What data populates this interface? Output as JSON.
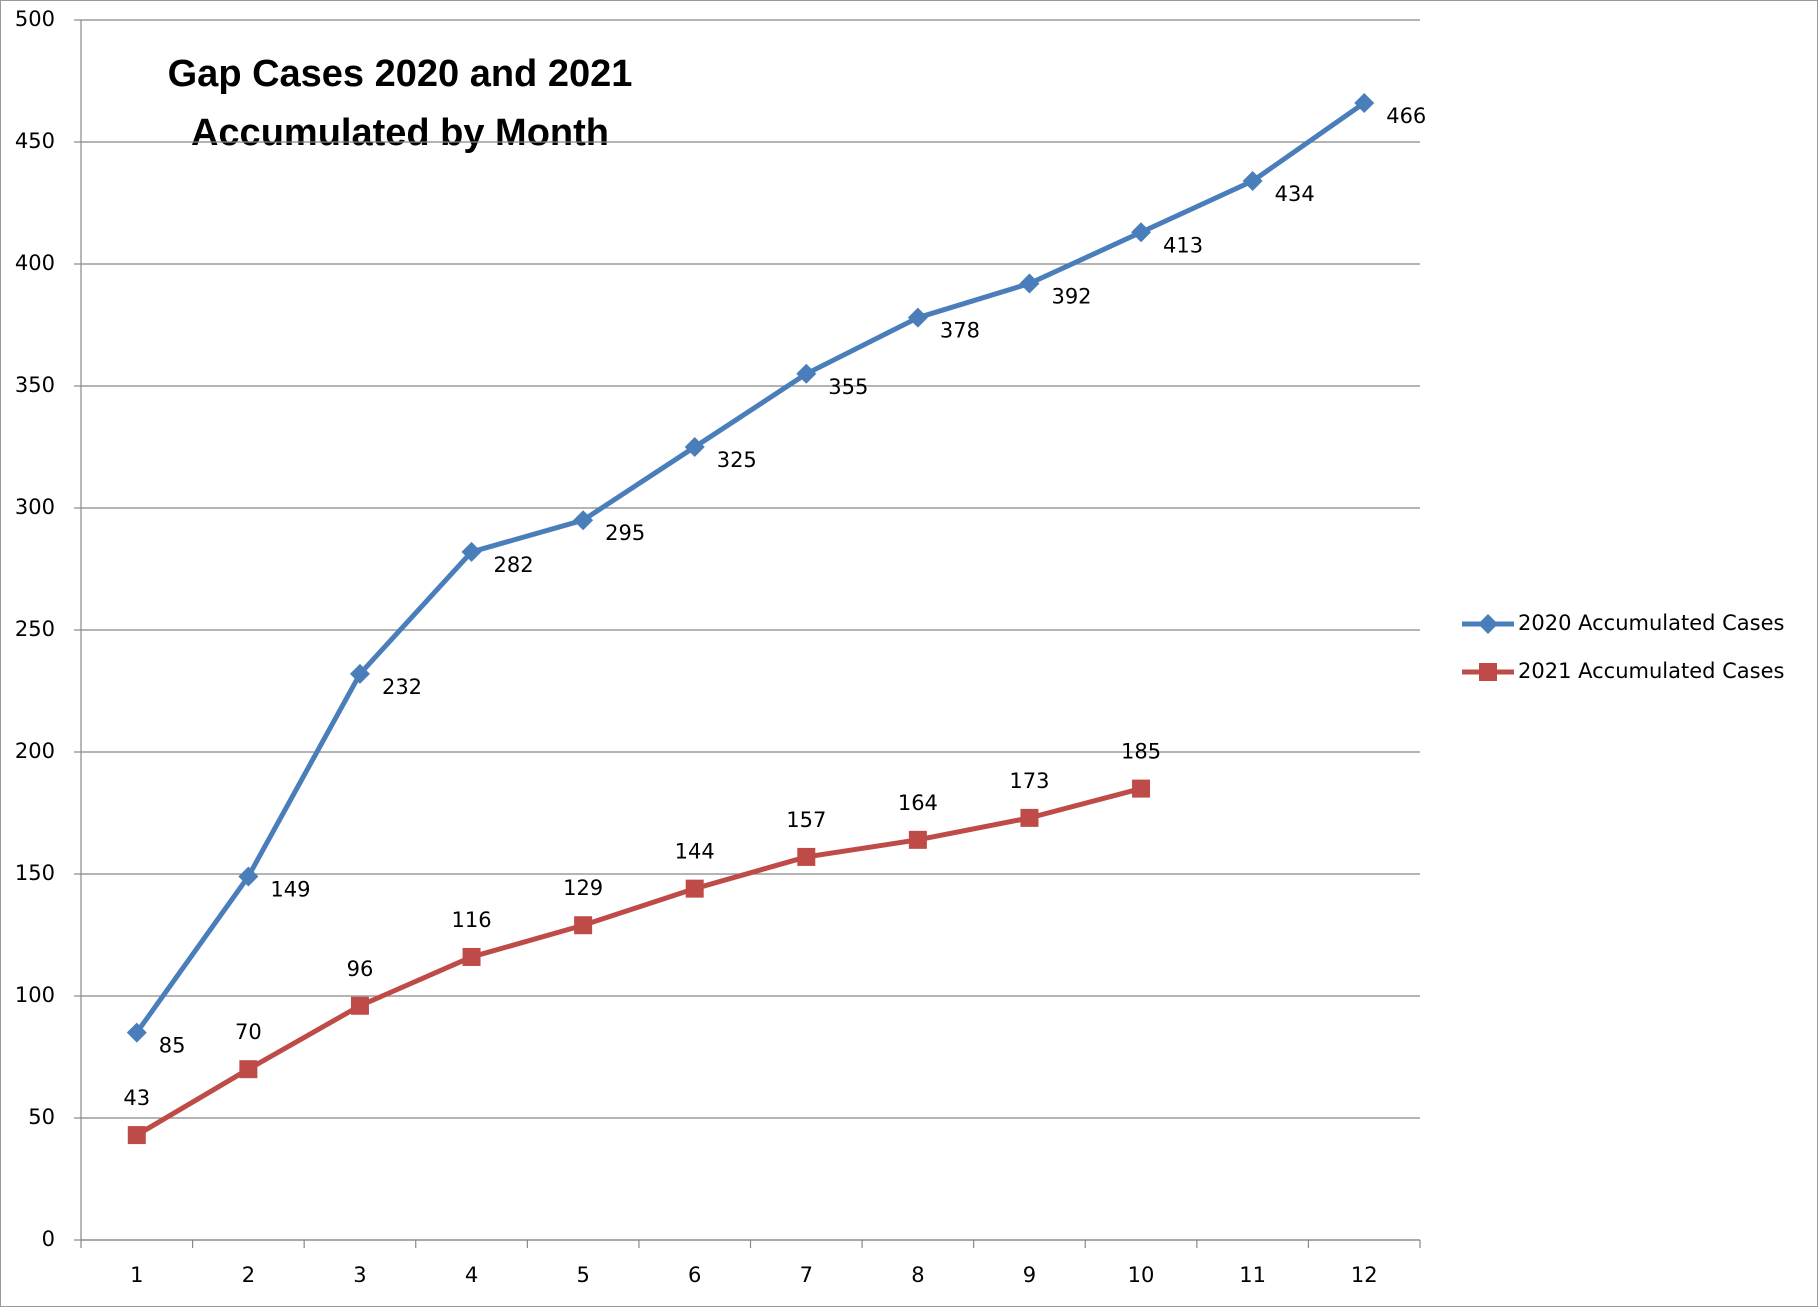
{
  "chart_data": {
    "type": "line",
    "title": [
      "Gap Cases 2020 and 2021",
      "Accumulated by Month"
    ],
    "categories": [
      "1",
      "2",
      "3",
      "4",
      "5",
      "6",
      "7",
      "8",
      "9",
      "10",
      "11",
      "12"
    ],
    "series": [
      {
        "name": "2020 Accumulated Cases",
        "color": "#4a7ebb",
        "marker": "diamond",
        "label_position": "right",
        "values": [
          85,
          149,
          232,
          282,
          295,
          325,
          355,
          378,
          392,
          413,
          434,
          466
        ]
      },
      {
        "name": "2021 Accumulated Cases",
        "color": "#be4b48",
        "marker": "square",
        "label_position": "above",
        "values": [
          43,
          70,
          96,
          116,
          129,
          144,
          157,
          164,
          173,
          185,
          null,
          null
        ]
      }
    ],
    "ylim": [
      0,
      500
    ],
    "yticks": [
      0,
      50,
      100,
      150,
      200,
      250,
      300,
      350,
      400,
      450,
      500
    ],
    "grid": true,
    "legend": "right"
  }
}
